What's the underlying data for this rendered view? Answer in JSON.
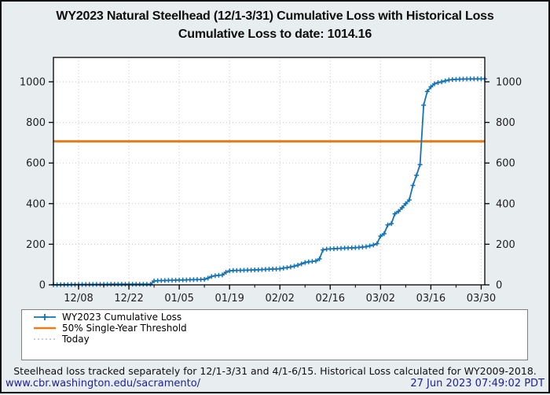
{
  "title": {
    "line1": "WY2023 Natural Steelhead (12/1-3/31) Cumulative Loss with Historical Loss",
    "line2": "Cumulative Loss to date: 1014.16"
  },
  "chart_data": {
    "type": "line",
    "title": "WY2023 Natural Steelhead (12/1-3/31) Cumulative Loss with Historical Loss",
    "subtitle": "Cumulative Loss to date: 1014.16",
    "x_axis": {
      "start_date": "12/01",
      "end_date": "03/31",
      "max_day": 120,
      "major_tick_days": [
        7,
        21,
        35,
        49,
        63,
        77,
        91,
        105,
        119
      ],
      "major_tick_labels": [
        "12/08",
        "12/22",
        "01/05",
        "01/19",
        "02/02",
        "02/16",
        "03/02",
        "03/16",
        "03/30"
      ],
      "minor_tick_days": [
        14,
        28,
        42,
        56,
        70,
        84,
        98,
        112
      ]
    },
    "y_axis": {
      "min": 0,
      "max": 1120,
      "ticks": [
        0,
        200,
        400,
        600,
        800,
        1000
      ],
      "labels_both_sides": true
    },
    "grid": "dotted",
    "legend_position": "bottom",
    "series": [
      {
        "name": "WY2023 Cumulative Loss",
        "color": "#1473b5",
        "marker": "plus",
        "start_date": "12/01",
        "values": [
          0.5,
          0.5,
          1,
          1,
          1,
          1.5,
          1.5,
          1.5,
          2,
          2,
          2,
          2,
          2.5,
          2.5,
          2.5,
          2.5,
          3,
          3,
          3,
          3,
          3,
          3,
          3,
          3,
          3,
          3,
          3,
          3,
          19,
          20.5,
          21,
          21.5,
          22,
          22.5,
          23,
          23.5,
          24,
          24.5,
          25,
          25.5,
          26,
          26.5,
          27,
          33,
          41,
          45,
          47,
          49,
          62,
          69,
          70.5,
          71,
          71.5,
          72,
          72.5,
          73,
          73.5,
          74,
          75,
          76,
          77,
          77.5,
          78,
          79,
          82,
          85,
          88,
          92,
          97,
          103,
          110,
          113,
          115,
          118,
          128,
          172,
          176,
          177,
          178,
          179,
          180,
          181,
          181.5,
          182,
          183,
          184,
          186,
          188,
          192,
          196,
          203,
          240,
          252,
          295,
          302,
          350,
          362,
          380,
          400,
          418,
          490,
          540,
          592,
          885,
          952,
          975,
          990,
          996,
          1000,
          1005,
          1009,
          1011,
          1012,
          1013,
          1013.5,
          1014,
          1014.16,
          1014.16,
          1014.16,
          1014.16,
          1014.16
        ]
      },
      {
        "name": "50% Single-Year Threshold",
        "color": "#e87d17",
        "type": "hline",
        "value": 707
      },
      {
        "name": "Today",
        "color": "#999999",
        "type": "vline-dotted",
        "drawn_in_range": false
      }
    ]
  },
  "legend": {
    "items": [
      {
        "label": "WY2023 Cumulative Loss"
      },
      {
        "label": "50% Single-Year Threshold"
      },
      {
        "label": "Today"
      }
    ]
  },
  "footer": {
    "note": "Steelhead loss tracked separately for 12/1-3/31 and 4/1-6/15. Historical Loss calculated for WY2009-2018.",
    "link": "www.cbr.washington.edu/sacramento/",
    "timestamp": "27 Jun 2023 07:49:02 PDT"
  }
}
